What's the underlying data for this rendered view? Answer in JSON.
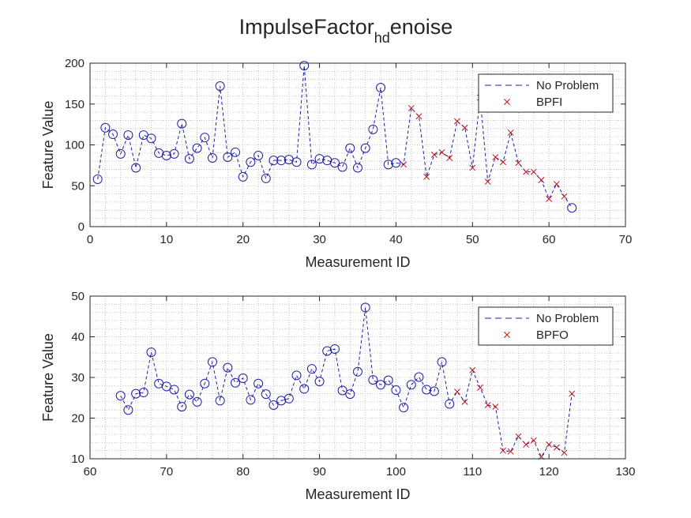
{
  "title": {
    "main": "ImpulseFactor",
    "sub": "hd",
    "tail": "enoise"
  },
  "colors": {
    "no_problem": "#1f1fa8",
    "fault": "#c0131a",
    "axis": "#262626",
    "grid": "#b8b8b8"
  },
  "chart_data": [
    {
      "type": "line",
      "xlabel": "Measurement ID",
      "ylabel": "Feature Value",
      "xlim": [
        0,
        70
      ],
      "ylim": [
        0,
        200
      ],
      "xticks": [
        0,
        10,
        20,
        30,
        40,
        50,
        60,
        70
      ],
      "yticks": [
        0,
        50,
        100,
        150,
        200
      ],
      "grid": "minor-dotted",
      "legend_position": "top-right",
      "legend": {
        "line_label": "No Problem",
        "marker_label": "BPFI"
      },
      "x": [
        1,
        2,
        3,
        4,
        5,
        6,
        7,
        8,
        9,
        10,
        11,
        12,
        13,
        14,
        15,
        16,
        17,
        18,
        19,
        20,
        21,
        22,
        23,
        24,
        25,
        26,
        27,
        28,
        29,
        30,
        31,
        32,
        33,
        34,
        35,
        36,
        37,
        38,
        39,
        40,
        41,
        42,
        43,
        44,
        45,
        46,
        47,
        48,
        49,
        50,
        51,
        52,
        53,
        54,
        55,
        56,
        57,
        58,
        59,
        60,
        61,
        62,
        63
      ],
      "y": [
        58,
        121,
        113,
        89,
        112,
        72,
        112,
        108,
        90,
        87,
        89,
        126,
        83,
        96,
        109,
        84,
        172,
        85,
        91,
        61,
        79,
        87,
        59,
        81,
        81,
        82,
        79,
        197,
        76,
        83,
        81,
        78,
        73,
        96,
        72,
        96,
        119,
        170,
        76,
        78,
        76,
        145,
        135,
        61,
        88,
        91,
        84,
        129,
        121,
        72,
        158,
        55,
        85,
        79,
        115,
        78,
        67,
        67,
        57,
        34,
        52,
        37,
        23
      ],
      "series": [
        {
          "name": "No Problem",
          "style": "dashed-line-circle",
          "x": [
            1,
            2,
            3,
            4,
            5,
            6,
            7,
            8,
            9,
            10,
            11,
            12,
            13,
            14,
            15,
            16,
            17,
            18,
            19,
            20,
            21,
            22,
            23,
            24,
            25,
            26,
            27,
            28,
            29,
            30,
            31,
            32,
            33,
            34,
            35,
            36,
            37,
            38,
            39,
            40,
            63
          ],
          "y": [
            58,
            121,
            113,
            89,
            112,
            72,
            112,
            108,
            90,
            87,
            89,
            126,
            83,
            96,
            109,
            84,
            172,
            85,
            91,
            61,
            79,
            87,
            59,
            81,
            81,
            82,
            79,
            197,
            76,
            83,
            81,
            78,
            73,
            96,
            72,
            96,
            119,
            170,
            76,
            78,
            23
          ]
        },
        {
          "name": "BPFI",
          "style": "x-marker",
          "x": [
            41,
            42,
            43,
            44,
            45,
            46,
            47,
            48,
            49,
            50,
            51,
            52,
            53,
            54,
            55,
            56,
            57,
            58,
            59,
            60,
            61,
            62
          ],
          "y": [
            76,
            145,
            135,
            61,
            88,
            91,
            84,
            129,
            121,
            72,
            158,
            55,
            85,
            79,
            115,
            78,
            67,
            67,
            57,
            34,
            52,
            37
          ]
        }
      ]
    },
    {
      "type": "line",
      "xlabel": "Measurement ID",
      "ylabel": "Feature Value",
      "xlim": [
        60,
        130
      ],
      "ylim": [
        10,
        50
      ],
      "xticks": [
        60,
        70,
        80,
        90,
        100,
        110,
        120,
        130
      ],
      "yticks": [
        10,
        20,
        30,
        40,
        50
      ],
      "grid": "minor-dotted",
      "legend_position": "top-right",
      "legend": {
        "line_label": "No Problem",
        "marker_label": "BPFO"
      },
      "x": [
        64,
        65,
        66,
        67,
        68,
        69,
        70,
        71,
        72,
        73,
        74,
        75,
        76,
        77,
        78,
        79,
        80,
        81,
        82,
        83,
        84,
        85,
        86,
        87,
        88,
        89,
        90,
        91,
        92,
        93,
        94,
        95,
        96,
        97,
        98,
        99,
        100,
        101,
        102,
        103,
        104,
        105,
        106,
        107,
        108,
        109,
        110,
        111,
        112,
        113,
        114,
        115,
        116,
        117,
        118,
        119,
        120,
        121,
        122,
        123
      ],
      "y": [
        25.5,
        22,
        26,
        26.3,
        36.2,
        28.5,
        27.8,
        27,
        22.8,
        25.8,
        24,
        28.5,
        33.8,
        24.3,
        32.4,
        28.7,
        29.8,
        24.5,
        28.5,
        25.9,
        23.2,
        24.3,
        24.8,
        30.5,
        27.2,
        32.1,
        29,
        36.5,
        37,
        26.8,
        25.9,
        31.4,
        47.2,
        29.4,
        28.2,
        29.3,
        26.9,
        22.6,
        28.2,
        30.1,
        27,
        26.6,
        33.8,
        23.5,
        26.5,
        24,
        31.8,
        27.5,
        23.2,
        22.8,
        12,
        11.8,
        15.5,
        13.5,
        14.5,
        10.5,
        13.5,
        12.8,
        11.5,
        26
      ],
      "series": [
        {
          "name": "No Problem",
          "style": "dashed-line-circle",
          "x": [
            64,
            65,
            66,
            67,
            68,
            69,
            70,
            71,
            72,
            73,
            74,
            75,
            76,
            77,
            78,
            79,
            80,
            81,
            82,
            83,
            84,
            85,
            86,
            87,
            88,
            89,
            90,
            91,
            92,
            93,
            94,
            95,
            96,
            97,
            98,
            99,
            100,
            101,
            102,
            103,
            104,
            105,
            106,
            107
          ],
          "y": [
            25.5,
            22,
            26,
            26.3,
            36.2,
            28.5,
            27.8,
            27,
            22.8,
            25.8,
            24,
            28.5,
            33.8,
            24.3,
            32.4,
            28.7,
            29.8,
            24.5,
            28.5,
            25.9,
            23.2,
            24.3,
            24.8,
            30.5,
            27.2,
            32.1,
            29,
            36.5,
            37,
            26.8,
            25.9,
            31.4,
            47.2,
            29.4,
            28.2,
            29.3,
            26.9,
            22.6,
            28.2,
            30.1,
            27,
            26.6,
            33.8,
            23.5
          ]
        },
        {
          "name": "BPFO",
          "style": "x-marker",
          "x": [
            108,
            109,
            110,
            111,
            112,
            113,
            114,
            115,
            116,
            117,
            118,
            119,
            120,
            121,
            122,
            123
          ],
          "y": [
            26.5,
            24,
            31.8,
            27.5,
            23.2,
            22.8,
            12,
            11.8,
            15.5,
            13.5,
            14.5,
            10.5,
            13.5,
            12.8,
            11.5,
            26
          ]
        }
      ]
    }
  ]
}
